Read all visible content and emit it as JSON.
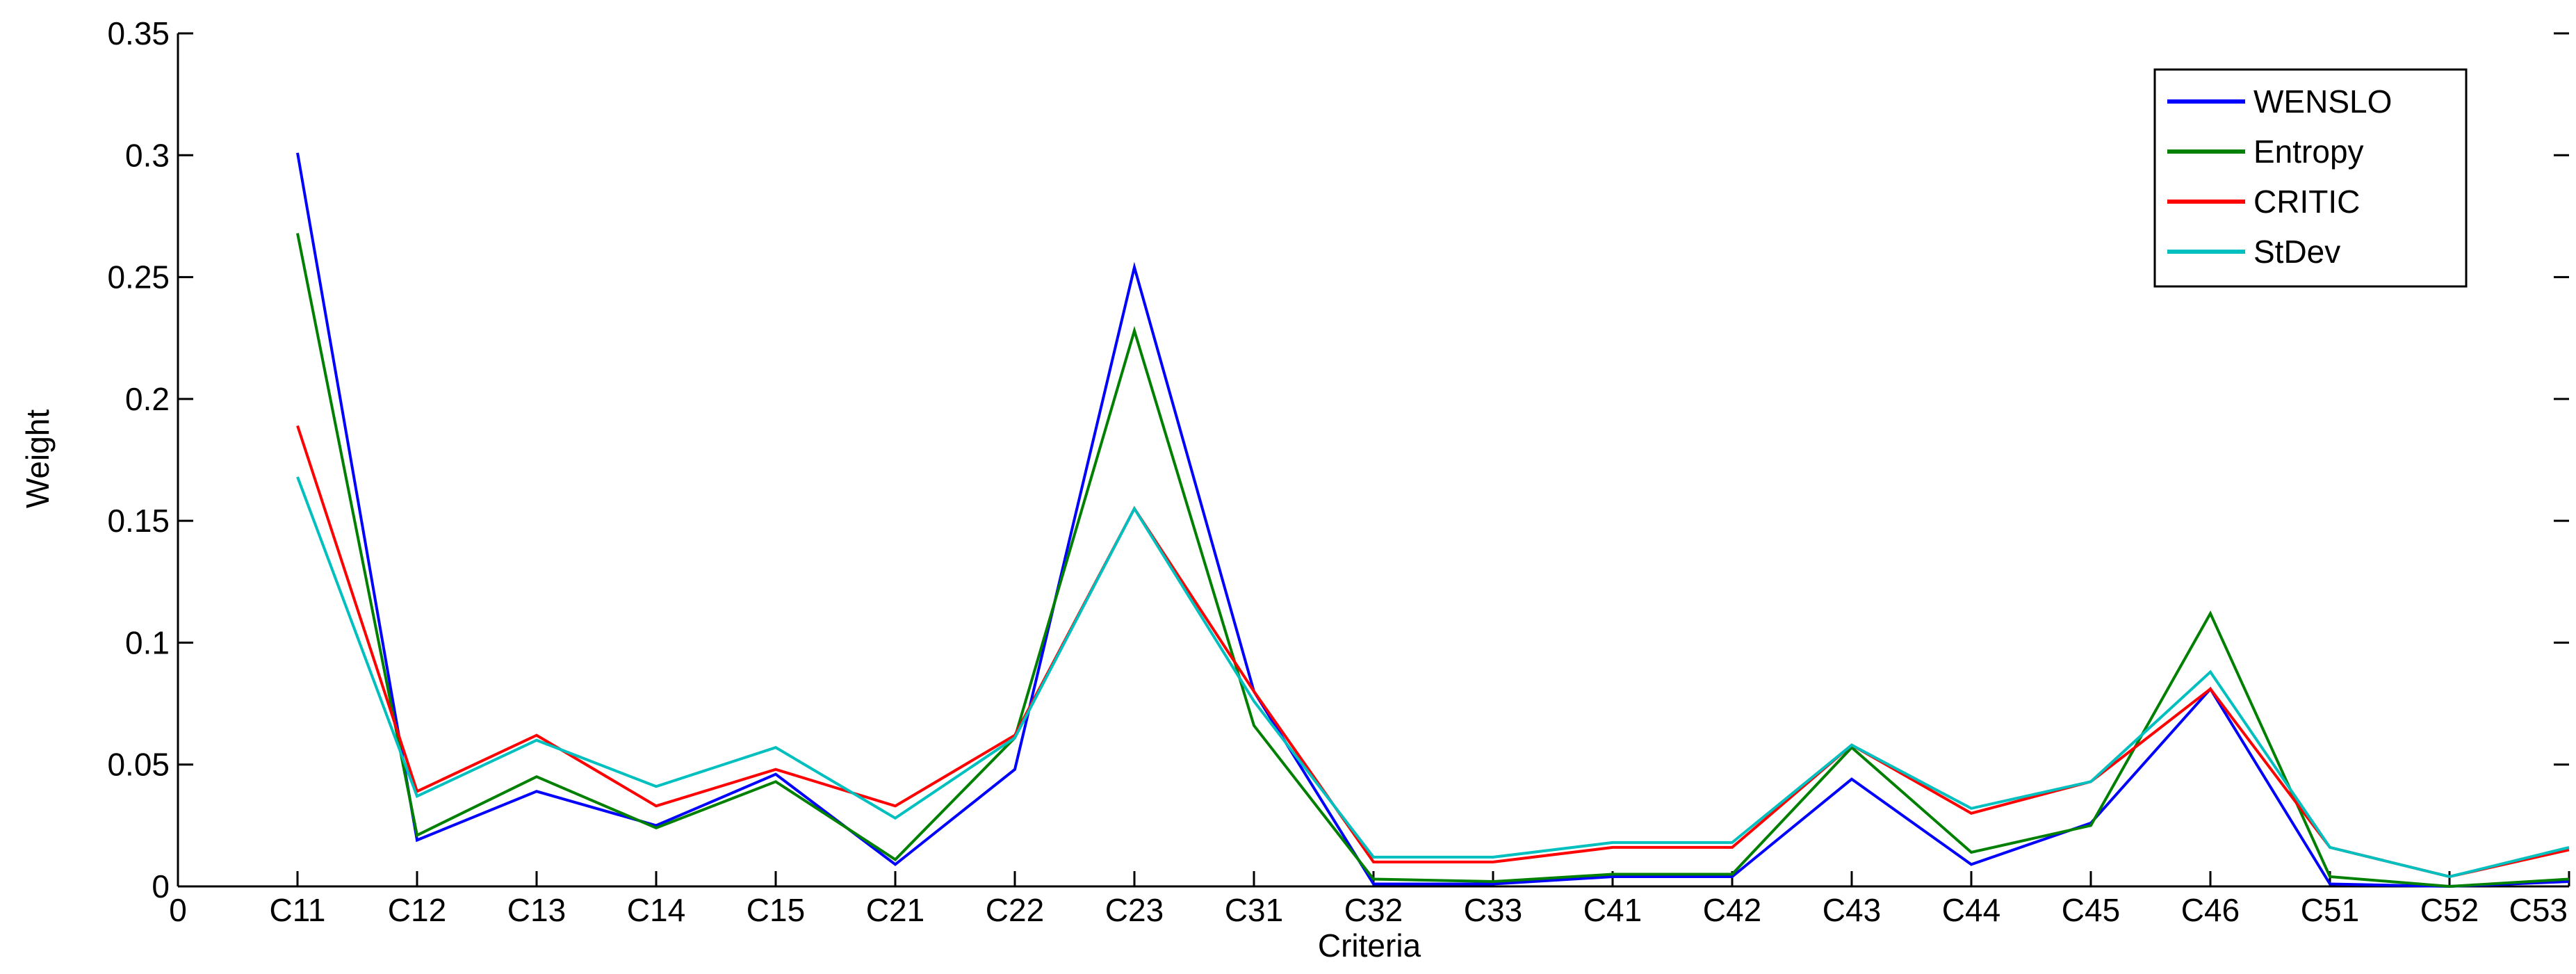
{
  "chart_data": {
    "type": "line",
    "xlabel": "Criteria",
    "ylabel": "Weight",
    "x_origin_label": "0",
    "categories": [
      "C11",
      "C12",
      "C13",
      "C14",
      "C15",
      "C21",
      "C22",
      "C23",
      "C31",
      "C32",
      "C33",
      "C41",
      "C42",
      "C43",
      "C44",
      "C45",
      "C46",
      "C51",
      "C52",
      "C53"
    ],
    "ylim": [
      0,
      0.35
    ],
    "yticks": [
      "0",
      "0.05",
      "0.1",
      "0.15",
      "0.2",
      "0.25",
      "0.3",
      "0.35"
    ],
    "legend_position": "top-right",
    "grid": false,
    "series": [
      {
        "name": "WENSLO",
        "color": "#0000ff",
        "values": [
          0.301,
          0.019,
          0.039,
          0.025,
          0.046,
          0.009,
          0.048,
          0.254,
          0.08,
          0.001,
          0.001,
          0.004,
          0.004,
          0.044,
          0.009,
          0.026,
          0.081,
          0.001,
          0.0,
          0.002
        ]
      },
      {
        "name": "Entropy",
        "color": "#008000",
        "values": [
          0.268,
          0.021,
          0.045,
          0.024,
          0.043,
          0.011,
          0.061,
          0.228,
          0.066,
          0.003,
          0.002,
          0.005,
          0.005,
          0.057,
          0.014,
          0.025,
          0.112,
          0.004,
          0.0,
          0.003
        ]
      },
      {
        "name": "CRITIC",
        "color": "#ff0000",
        "values": [
          0.189,
          0.039,
          0.062,
          0.033,
          0.048,
          0.033,
          0.062,
          0.155,
          0.08,
          0.01,
          0.01,
          0.016,
          0.016,
          0.058,
          0.03,
          0.043,
          0.081,
          0.016,
          0.004,
          0.015
        ]
      },
      {
        "name": "StDev",
        "color": "#00bfbf",
        "values": [
          0.168,
          0.037,
          0.06,
          0.041,
          0.057,
          0.028,
          0.061,
          0.155,
          0.076,
          0.012,
          0.012,
          0.018,
          0.018,
          0.058,
          0.032,
          0.043,
          0.088,
          0.016,
          0.004,
          0.016
        ]
      }
    ]
  }
}
